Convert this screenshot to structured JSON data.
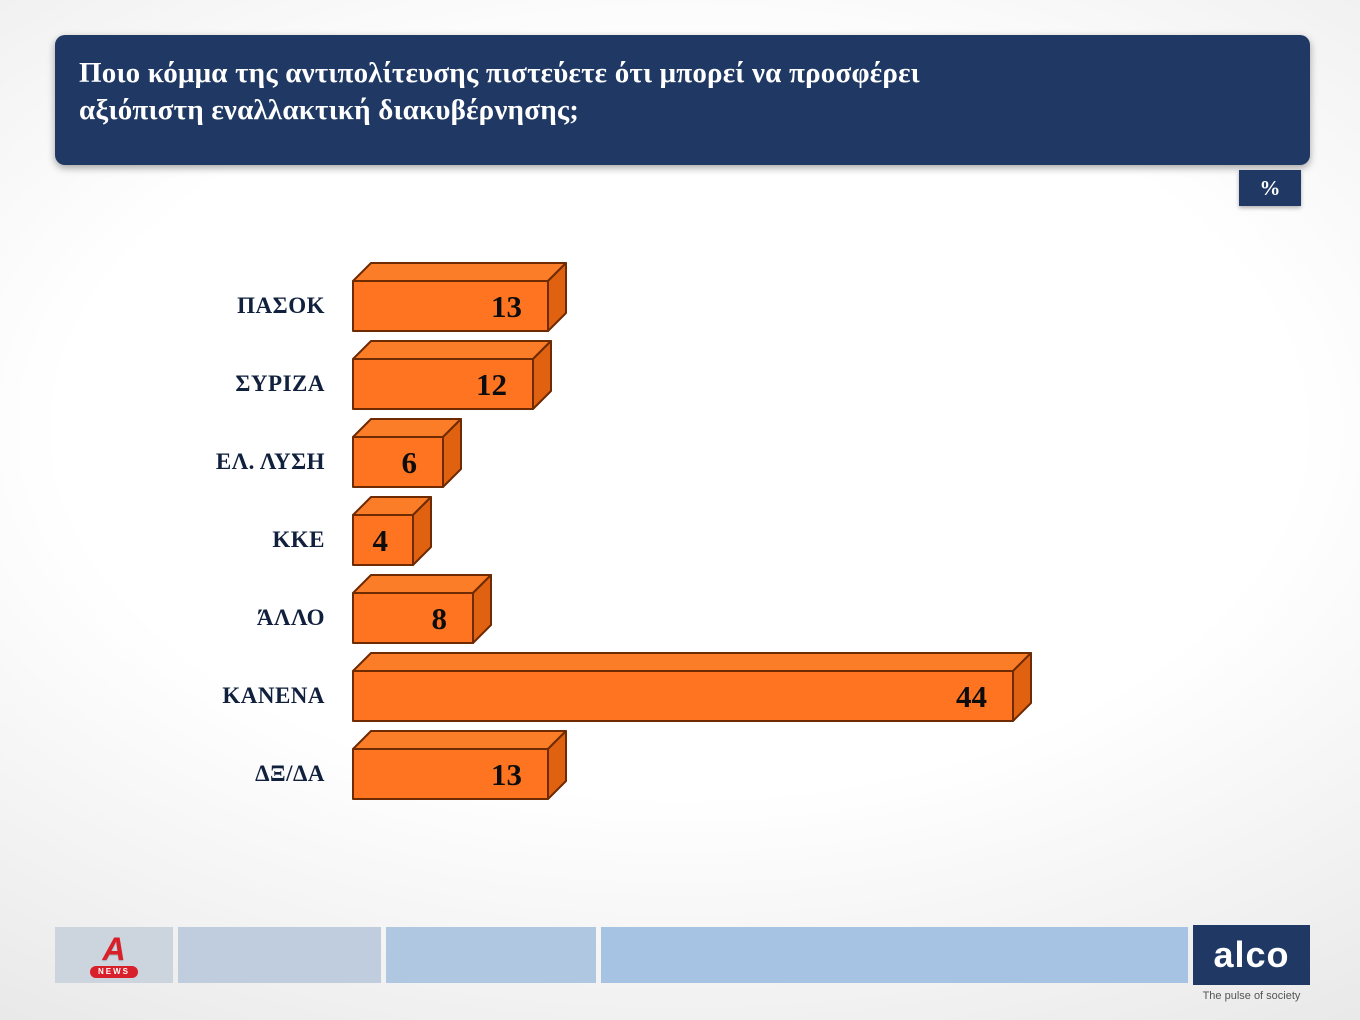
{
  "header": {
    "title_lines": [
      "Ποιο κόμμα της αντιπολίτευσης πιστεύετε ότι μπορεί να προσφέρει",
      "αξιόπιστη εναλλακτική διακυβέρνησης;"
    ],
    "background": "#1f3864"
  },
  "unit_badge": {
    "label": "%"
  },
  "chart_data": {
    "type": "bar",
    "orientation": "horizontal",
    "title": "Ποιο κόμμα της αντιπολίτευσης πιστεύετε ότι μπορεί να προσφέρει αξιόπιστη εναλλακτική διακυβέρνησης;",
    "unit": "%",
    "categories": [
      "ΠΑΣΟΚ",
      "ΣΥΡΙΖΑ",
      "ΕΛ. ΛΥΣΗ",
      "ΚΚΕ",
      "ΆΛΛΟ",
      "ΚΑΝΕΝΑ",
      "ΔΞ/ΔΑ"
    ],
    "values": [
      13,
      12,
      6,
      4,
      8,
      44,
      13
    ],
    "xlim": [
      0,
      46
    ],
    "grid": false,
    "legend": "none",
    "bar_color_front": "#ff7420",
    "bar_color_top": "#fb7d28",
    "bar_color_side": "#e06210",
    "bar_outline": "#6e2a00",
    "value_label_color": "#0d0d0d"
  },
  "footer": {
    "alpha_logo": {
      "letter": "A",
      "sub": "NEWS"
    },
    "alco": {
      "brand": "alco",
      "tagline": "The pulse of society"
    }
  }
}
